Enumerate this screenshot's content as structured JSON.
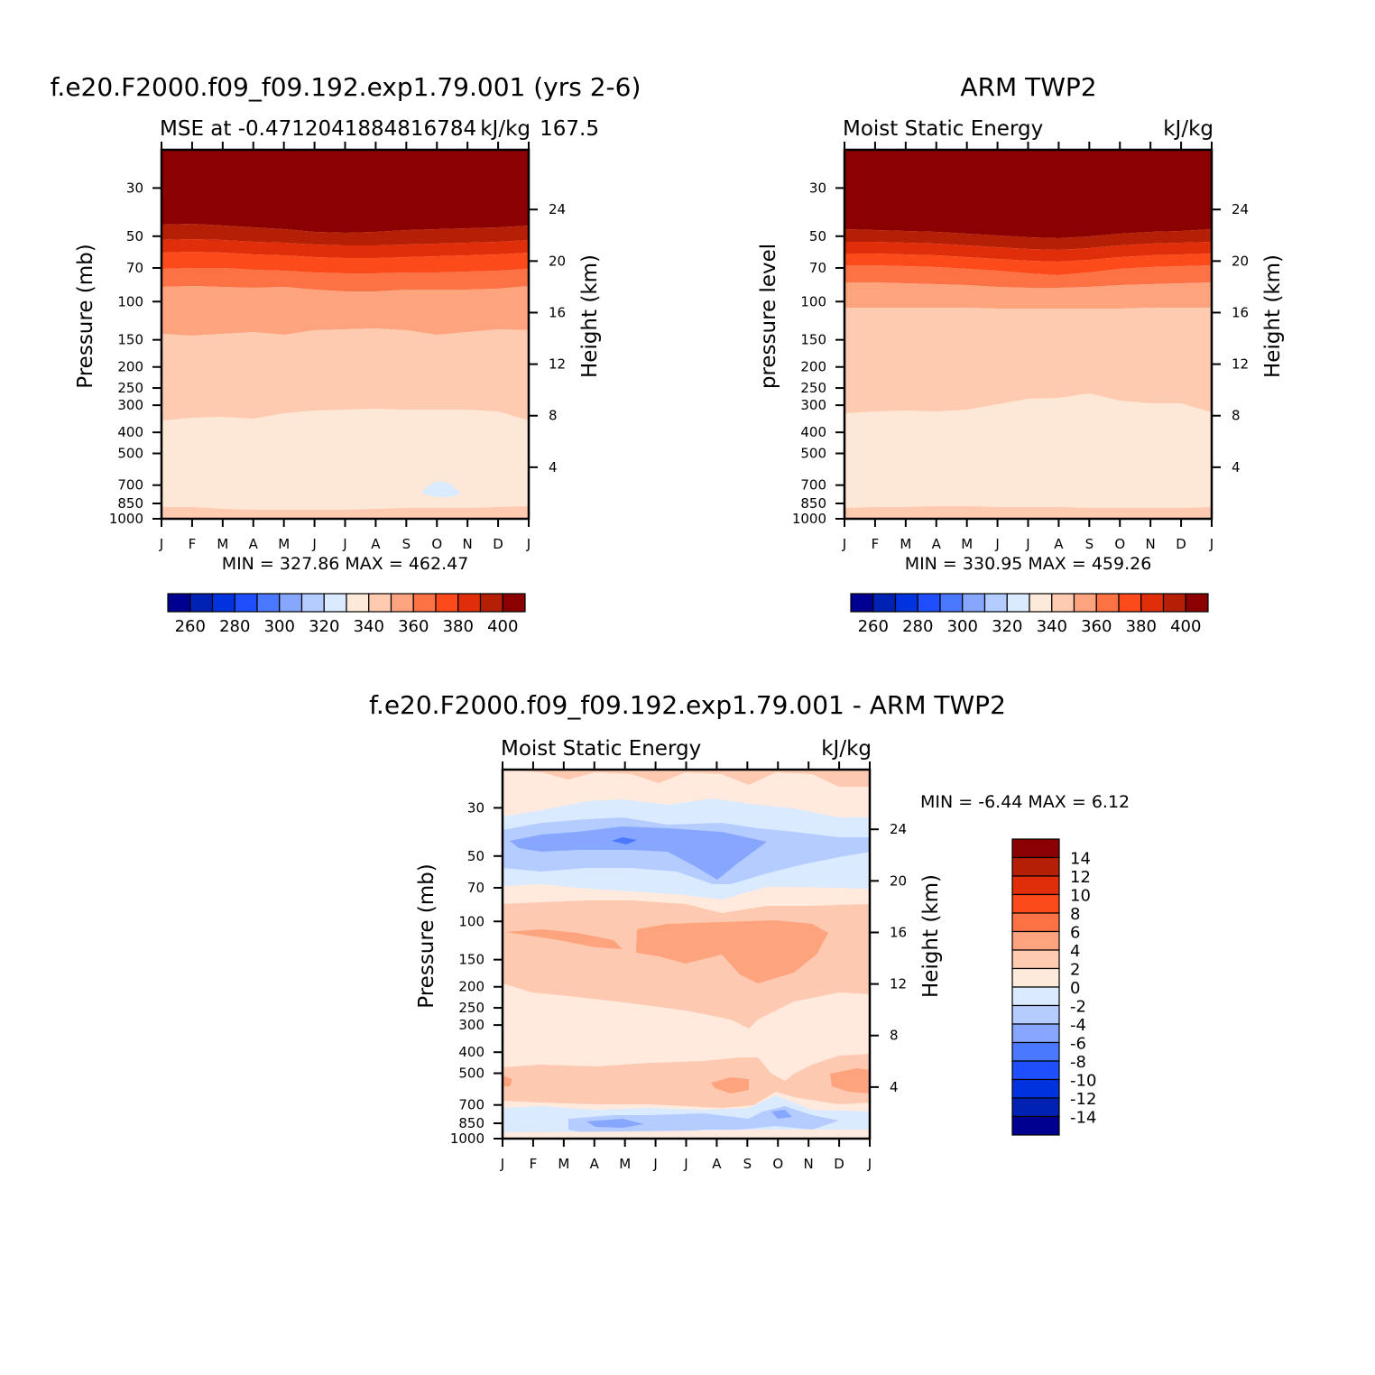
{
  "chart_data": [
    {
      "type": "heatmap",
      "title": "f.e20.F2000.f09_f09.192.exp1.79.001 (yrs 2-6)",
      "subtitle_left": "MSE at -0.4712041884816784",
      "subtitle_right": "kJ/kg",
      "subtitle_extra": "167.5",
      "ylabel": "Pressure (mb)",
      "ylabel_right": "Height (km)",
      "x_ticks": [
        "J",
        "F",
        "M",
        "A",
        "M",
        "J",
        "J",
        "A",
        "S",
        "O",
        "N",
        "D",
        "J"
      ],
      "y_ticks": [
        "30",
        "50",
        "70",
        "100",
        "150",
        "200",
        "250",
        "300",
        "400",
        "500",
        "700",
        "850",
        "1000"
      ],
      "y_tick_values": [
        30,
        50,
        70,
        100,
        150,
        200,
        250,
        300,
        400,
        500,
        700,
        850,
        1000
      ],
      "ylim": [
        20,
        1000
      ],
      "height_ticks": [
        "24",
        "20",
        "16",
        "12",
        "8",
        "4"
      ],
      "stats": "MIN = 327.86 MAX = 462.47",
      "min": 327.86,
      "max": 462.47,
      "colorbar_ticks": [
        "260",
        "280",
        "300",
        "320",
        "340",
        "360",
        "380",
        "400"
      ],
      "contour_levels": [
        250,
        260,
        270,
        280,
        290,
        300,
        310,
        320,
        330,
        340,
        350,
        360,
        370,
        380,
        390,
        400
      ]
    },
    {
      "type": "heatmap",
      "title": "ARM TWP2",
      "subtitle_left": "Moist Static Energy",
      "subtitle_right": "kJ/kg",
      "ylabel": "pressure level",
      "ylabel_right": "Height (km)",
      "x_ticks": [
        "J",
        "F",
        "M",
        "A",
        "M",
        "J",
        "J",
        "A",
        "S",
        "O",
        "N",
        "D",
        "J"
      ],
      "y_ticks": [
        "30",
        "50",
        "70",
        "100",
        "150",
        "200",
        "250",
        "300",
        "400",
        "500",
        "700",
        "850",
        "1000"
      ],
      "y_tick_values": [
        30,
        50,
        70,
        100,
        150,
        200,
        250,
        300,
        400,
        500,
        700,
        850,
        1000
      ],
      "ylim": [
        20,
        1000
      ],
      "height_ticks": [
        "24",
        "20",
        "16",
        "12",
        "8",
        "4"
      ],
      "stats": "MIN = 330.95 MAX = 459.26",
      "min": 330.95,
      "max": 459.26,
      "colorbar_ticks": [
        "260",
        "280",
        "300",
        "320",
        "340",
        "360",
        "380",
        "400"
      ],
      "contour_levels": [
        250,
        260,
        270,
        280,
        290,
        300,
        310,
        320,
        330,
        340,
        350,
        360,
        370,
        380,
        390,
        400
      ]
    },
    {
      "type": "heatmap",
      "title": "f.e20.F2000.f09_f09.192.exp1.79.001 - ARM TWP2",
      "subtitle_left": "Moist Static Energy",
      "subtitle_right": "kJ/kg",
      "ylabel": "Pressure (mb)",
      "ylabel_right": "Height (km)",
      "x_ticks": [
        "J",
        "F",
        "M",
        "A",
        "M",
        "J",
        "J",
        "A",
        "S",
        "O",
        "N",
        "D",
        "J"
      ],
      "y_ticks": [
        "30",
        "50",
        "70",
        "100",
        "150",
        "200",
        "250",
        "300",
        "400",
        "500",
        "700",
        "850",
        "1000"
      ],
      "y_tick_values": [
        30,
        50,
        70,
        100,
        150,
        200,
        250,
        300,
        400,
        500,
        700,
        850,
        1000
      ],
      "ylim": [
        20,
        1000
      ],
      "height_ticks": [
        "24",
        "20",
        "16",
        "12",
        "8",
        "4"
      ],
      "stats": "MIN = -6.44 MAX = 6.12",
      "min": -6.44,
      "max": 6.12,
      "colorbar_ticks": [
        "14",
        "12",
        "10",
        "8",
        "6",
        "4",
        "2",
        "0",
        "-2",
        "-4",
        "-6",
        "-8",
        "-10",
        "-12",
        "-14"
      ],
      "contour_levels": [
        -14,
        -12,
        -10,
        -8,
        -6,
        -4,
        -2,
        0,
        2,
        4,
        6,
        8,
        10,
        12,
        14
      ]
    }
  ],
  "palette": {
    "ramp16": [
      "#000090",
      "#0022b4",
      "#0033dd",
      "#1f4ffa",
      "#4a78ff",
      "#87a7ff",
      "#b4ccff",
      "#daeaff",
      "#feeada",
      "#fecab0",
      "#fda47e",
      "#fc7244",
      "#fd4a1a",
      "#e02d0a",
      "#b51f06",
      "#8b0000"
    ],
    "diff": [
      "#ffeadd",
      "#fec9b1",
      "#fda47e",
      "#daeaff",
      "#b4ccff",
      "#87a7ff",
      "#4a78ff",
      "#1f4ffa"
    ]
  }
}
